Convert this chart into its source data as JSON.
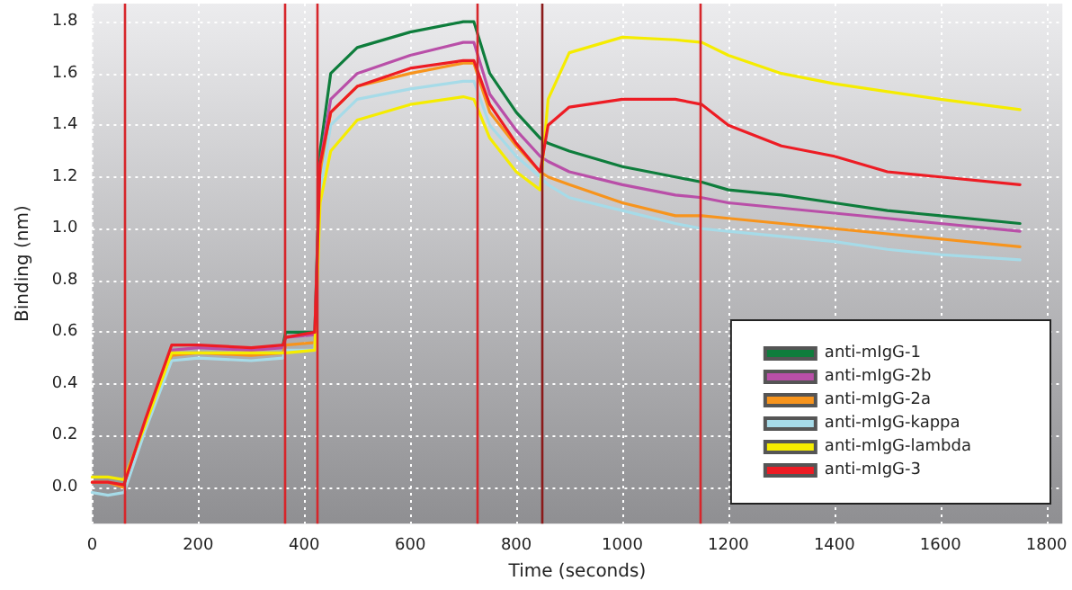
{
  "chart_data": {
    "type": "line",
    "xlabel": "Time (seconds)",
    "ylabel": "Binding (nm)",
    "xlim": [
      0,
      1830
    ],
    "xticks": [
      0,
      200,
      400,
      600,
      800,
      1000,
      1200,
      1400,
      1600,
      1800
    ],
    "ylim": [
      -0.14,
      1.87
    ],
    "yticks": [
      {
        "value": 0,
        "label": "0.0"
      },
      0.2,
      0.4,
      0.6,
      0.8,
      {
        "value": 1,
        "label": "1.0"
      },
      1.2,
      1.4,
      1.6,
      1.8
    ],
    "grid": true,
    "legend": "bottom right",
    "marker": "none",
    "line_style": "solid",
    "x": [
      0,
      30,
      60,
      100,
      150,
      200,
      300,
      360,
      365,
      420,
      430,
      450,
      500,
      600,
      700,
      720,
      750,
      800,
      845,
      860,
      900,
      1000,
      1100,
      1150,
      1200,
      1300,
      1400,
      1500,
      1600,
      1750
    ],
    "series": [
      {
        "name": "anti-mIgG-1",
        "color": "#0e7d3c",
        "values": [
          null,
          null,
          null,
          null,
          null,
          null,
          null,
          0.55,
          0.6,
          0.6,
          1.3,
          1.6,
          1.7,
          1.76,
          1.8,
          1.8,
          1.6,
          1.45,
          1.35,
          1.33,
          1.3,
          1.24,
          1.2,
          1.18,
          1.15,
          1.13,
          1.1,
          1.07,
          1.05,
          1.02
        ]
      },
      {
        "name": "anti-mIgG-2b",
        "color": "#b94fa8",
        "values": [
          null,
          null,
          0.0,
          0.25,
          0.53,
          0.54,
          0.53,
          0.54,
          0.58,
          0.59,
          1.25,
          1.5,
          1.6,
          1.67,
          1.72,
          1.72,
          1.52,
          1.38,
          1.28,
          1.26,
          1.22,
          1.17,
          1.13,
          1.12,
          1.1,
          1.08,
          1.06,
          1.04,
          1.02,
          0.99
        ]
      },
      {
        "name": "anti-mIgG-2a",
        "color": "#f7941d",
        "values": [
          0.02,
          0.02,
          0.0,
          0.24,
          0.51,
          0.52,
          0.51,
          0.52,
          0.55,
          0.56,
          1.2,
          1.45,
          1.55,
          1.6,
          1.64,
          1.64,
          1.45,
          1.32,
          1.22,
          1.2,
          1.17,
          1.1,
          1.05,
          1.05,
          1.04,
          1.02,
          1.0,
          0.98,
          0.96,
          0.93
        ]
      },
      {
        "name": "anti-mIgG-kappa",
        "color": "#a6dbe8",
        "values": [
          -0.02,
          -0.03,
          -0.02,
          0.22,
          0.49,
          0.5,
          0.49,
          0.5,
          0.53,
          0.53,
          1.15,
          1.4,
          1.5,
          1.54,
          1.57,
          1.57,
          1.4,
          1.28,
          1.2,
          1.17,
          1.12,
          1.07,
          1.02,
          1.0,
          0.99,
          0.97,
          0.95,
          0.92,
          0.9,
          0.88
        ]
      },
      {
        "name": "anti-mIgG-lambda",
        "color": "#f5ec00",
        "values": [
          0.04,
          0.04,
          0.03,
          0.24,
          0.52,
          0.52,
          0.52,
          0.52,
          0.52,
          0.53,
          1.1,
          1.3,
          1.42,
          1.48,
          1.51,
          1.5,
          1.35,
          1.22,
          1.15,
          1.5,
          1.68,
          1.74,
          1.73,
          1.72,
          1.67,
          1.6,
          1.56,
          1.53,
          1.5,
          1.46
        ]
      },
      {
        "name": "anti-mIgG-3",
        "color": "#ed1c24",
        "values": [
          0.02,
          0.02,
          0.01,
          0.26,
          0.55,
          0.55,
          0.54,
          0.55,
          0.58,
          0.6,
          1.25,
          1.45,
          1.55,
          1.62,
          1.65,
          1.65,
          1.48,
          1.33,
          1.22,
          1.4,
          1.47,
          1.5,
          1.5,
          1.48,
          1.4,
          1.32,
          1.28,
          1.22,
          1.2,
          1.17
        ]
      }
    ],
    "ref_lines": [
      {
        "axis": "x",
        "value": 60,
        "color": "#d7262b"
      },
      {
        "axis": "x",
        "value": 363,
        "color": "#d7262b"
      },
      {
        "axis": "x",
        "value": 423,
        "color": "#d7262b"
      },
      {
        "axis": "x",
        "value": 725,
        "color": "#d7262b"
      },
      {
        "axis": "x",
        "value": 847,
        "color": "#8b1a1a"
      },
      {
        "axis": "x",
        "value": 1148,
        "color": "#d7262b"
      }
    ]
  }
}
